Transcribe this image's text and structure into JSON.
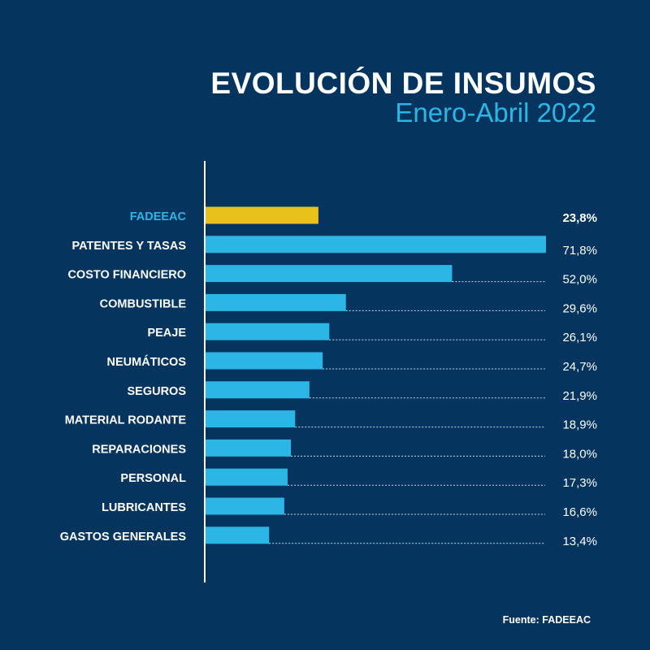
{
  "chart_data": {
    "type": "bar",
    "orientation": "horizontal",
    "title": "EVOLUCIÓN DE INSUMOS",
    "subtitle": "Enero-Abril 2022",
    "categories": [
      "FADEEAC",
      "PATENTES Y TASAS",
      "COSTO FINANCIERO",
      "COMBUSTIBLE",
      "PEAJE",
      "NEUMÁTICOS",
      "SEGUROS",
      "MATERIAL RODANTE",
      "REPARACIONES",
      "PERSONAL",
      "LUBRICANTES",
      "GASTOS GENERALES"
    ],
    "values": [
      23.8,
      71.8,
      52.0,
      29.6,
      26.1,
      24.7,
      21.9,
      18.9,
      18.0,
      17.3,
      16.6,
      13.4
    ],
    "value_labels": [
      "23,8%",
      "71,8%",
      "52,0%",
      "29,6%",
      "26,1%",
      "24,7%",
      "21,9%",
      "18,9%",
      "18,0%",
      "17,3%",
      "16,6%",
      "13,4%"
    ],
    "highlight": "FADEEAC",
    "xlim": [
      0,
      71.8
    ],
    "xlabel": "",
    "ylabel": "",
    "grid": false,
    "legend": "none",
    "source": "Fuente: FADEEAC"
  },
  "colors": {
    "background": "#05345e",
    "bar": "#2bb6e6",
    "highlight_bar": "#e9c11d",
    "highlight_label": "#2bb6e6",
    "text": "#ffffff",
    "leader_line": "#cfd8e3"
  }
}
